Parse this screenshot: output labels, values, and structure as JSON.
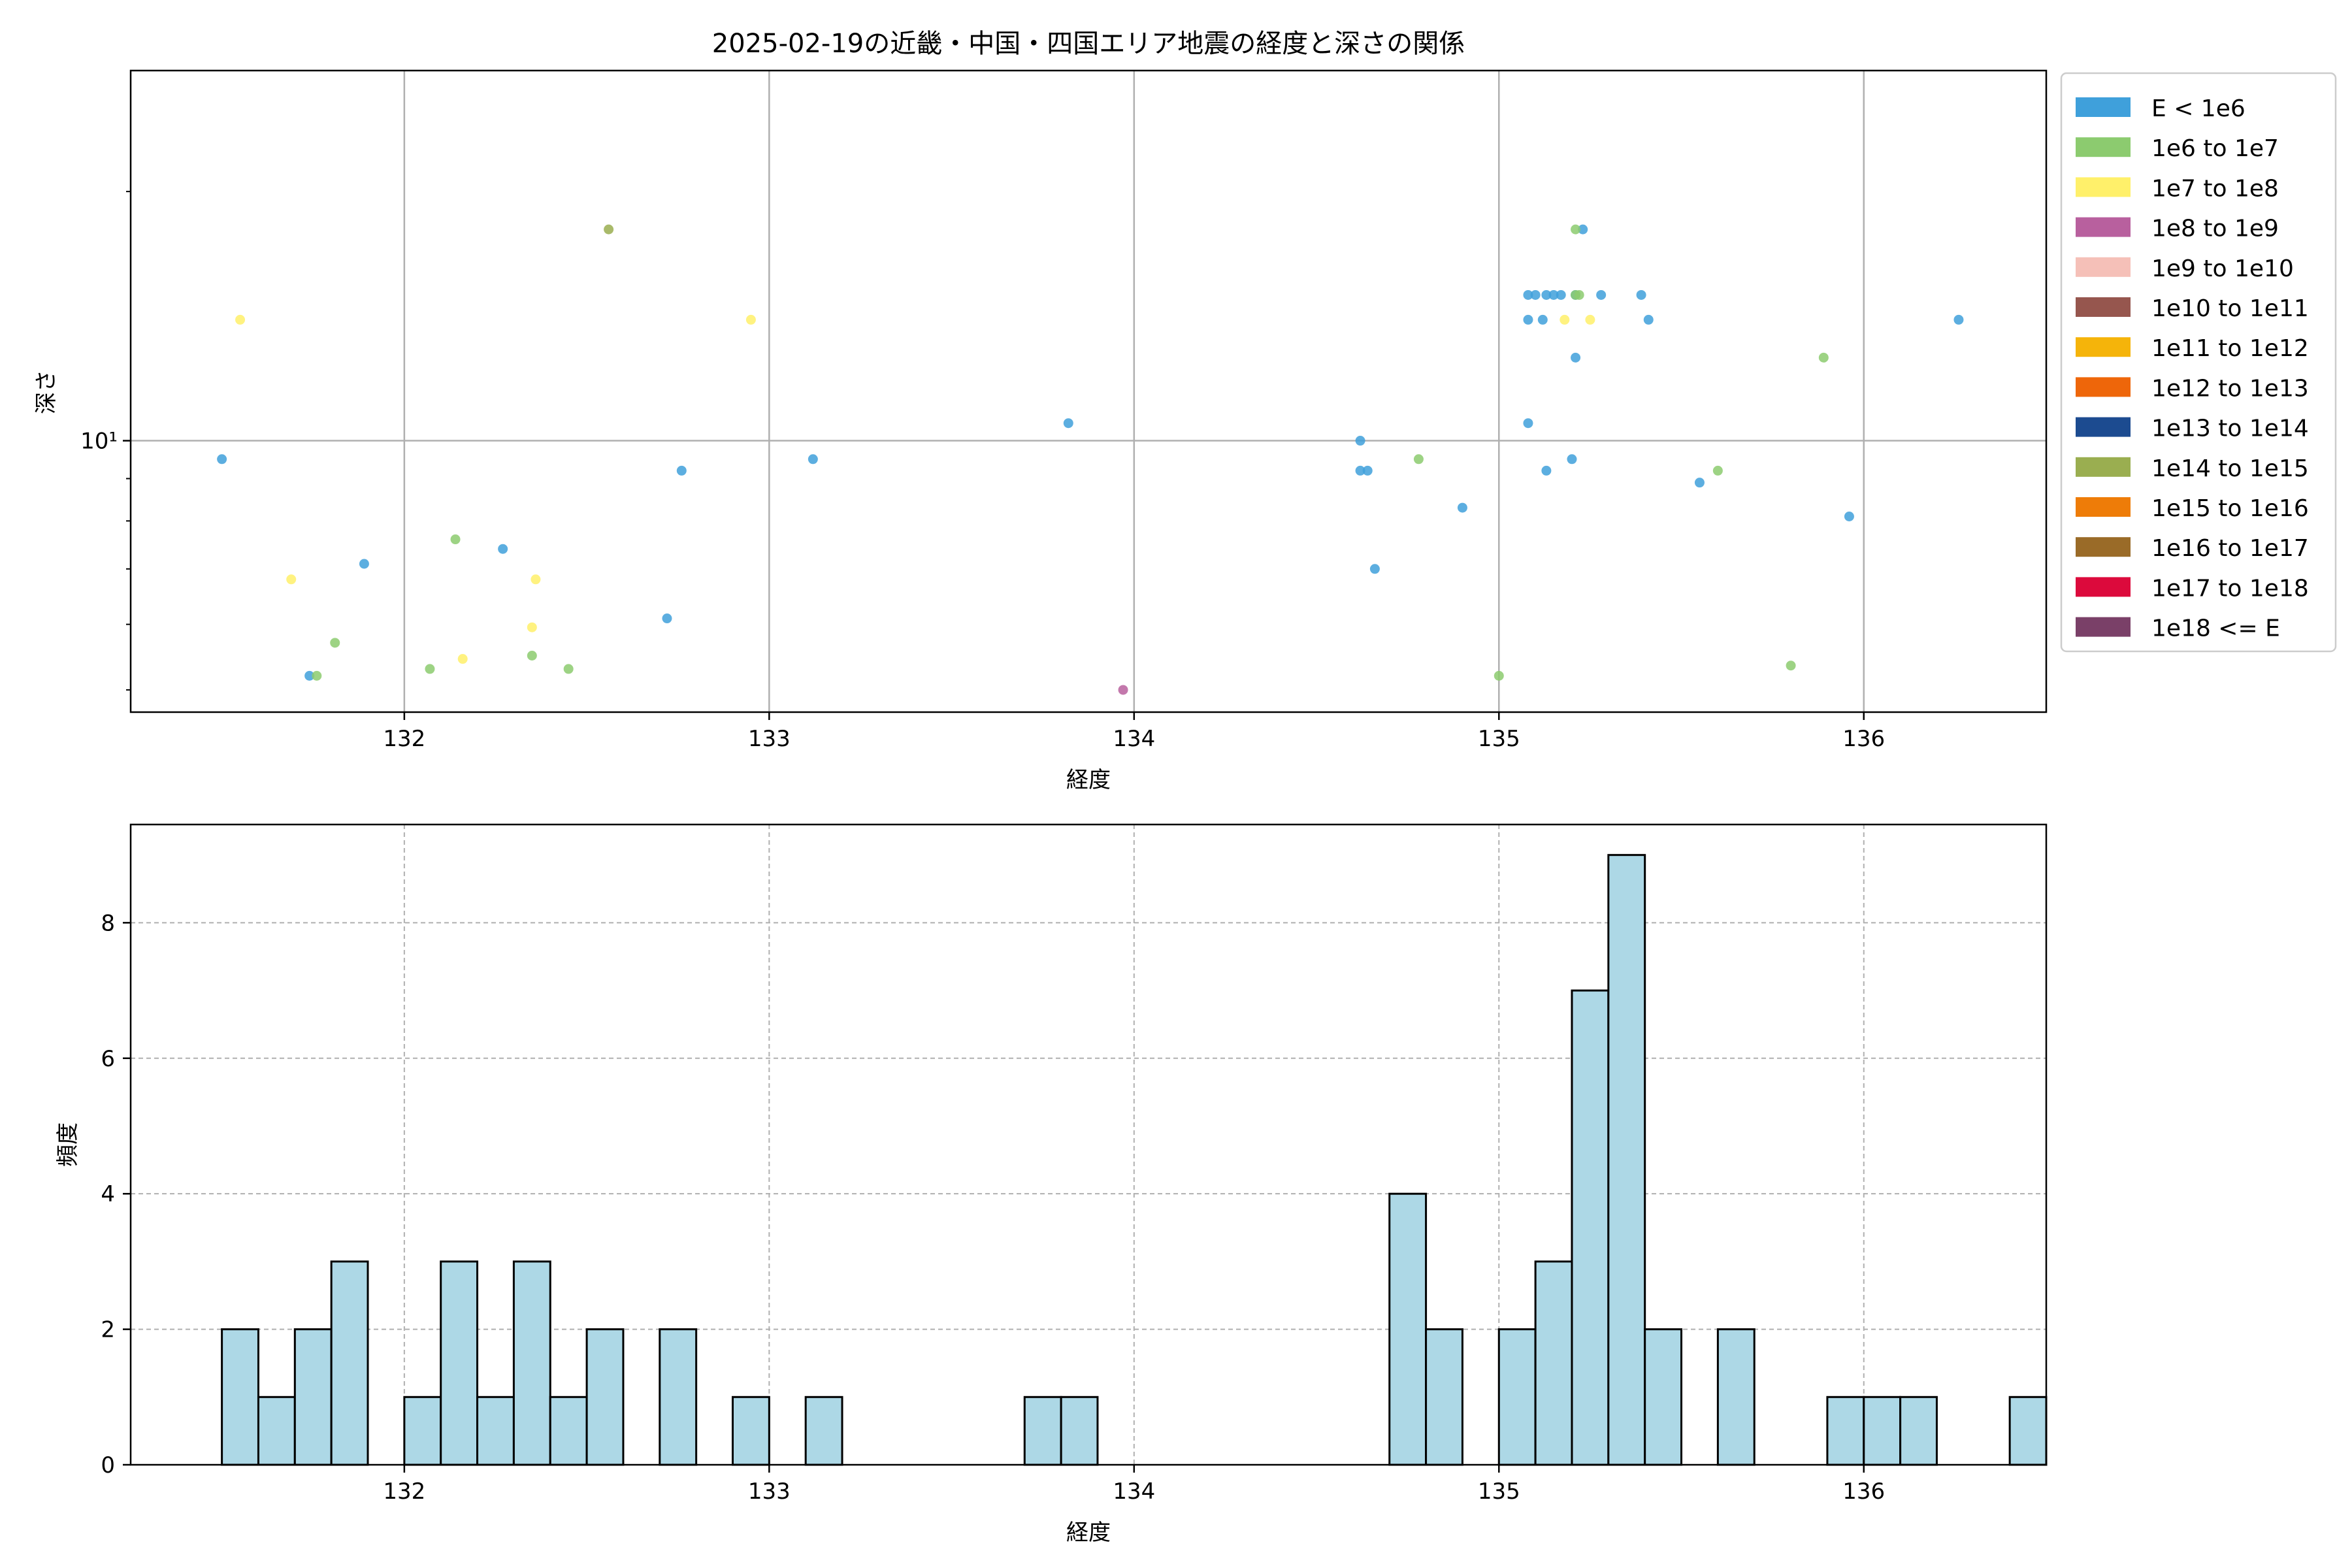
{
  "figure": {
    "background": "#ffffff"
  },
  "chart_data": [
    {
      "type": "scatter",
      "title": "2025-02-19の近畿・中国・四国エリア地震の経度と深さの関係",
      "xlabel": "経度",
      "ylabel": "深さ",
      "xlim": [
        131.25,
        136.5
      ],
      "ylim": [
        4.7,
        28
      ],
      "yscale": "log",
      "xticks": [
        "132",
        "133",
        "134",
        "135",
        "136"
      ],
      "yticks": [
        "10¹"
      ],
      "grid": true,
      "legend_position": "right-outside",
      "legend": [
        {
          "label": "E < 1e6",
          "color": "#3fa0db"
        },
        {
          "label": "1e6 to 1e7",
          "color": "#8ccb6f"
        },
        {
          "label": "1e7 to 1e8",
          "color": "#fff06a"
        },
        {
          "label": "1e8 to 1e9",
          "color": "#b8609e"
        },
        {
          "label": "1e9 to 1e10",
          "color": "#f5c0b8"
        },
        {
          "label": "1e10 to 1e11",
          "color": "#96564e"
        },
        {
          "label": "1e11 to 1e12",
          "color": "#f5b40a"
        },
        {
          "label": "1e12 to 1e13",
          "color": "#ee660a"
        },
        {
          "label": "1e13 to 1e14",
          "color": "#1c4b90"
        },
        {
          "label": "1e14 to 1e15",
          "color": "#9aae50"
        },
        {
          "label": "1e15 to 1e16",
          "color": "#ee7c08"
        },
        {
          "label": "1e16 to 1e17",
          "color": "#9a6b28"
        },
        {
          "label": "1e17 to 1e18",
          "color": "#dc0a3c"
        },
        {
          "label": "1e18 <= E",
          "color": "#7a4068"
        }
      ],
      "series": [
        {
          "legend_index": 0,
          "points": [
            [
              131.5,
              9.5
            ],
            [
              131.74,
              5.2
            ],
            [
              131.89,
              7.1
            ],
            [
              132.27,
              7.4
            ],
            [
              132.72,
              6.1
            ],
            [
              132.76,
              9.2
            ],
            [
              133.12,
              9.5
            ],
            [
              133.82,
              10.5
            ],
            [
              134.62,
              10.0
            ],
            [
              134.62,
              9.2
            ],
            [
              134.64,
              9.2
            ],
            [
              134.66,
              7.0
            ],
            [
              134.9,
              8.3
            ],
            [
              135.08,
              14.0
            ],
            [
              135.08,
              15.0
            ],
            [
              135.1,
              15.0
            ],
            [
              135.12,
              14.0
            ],
            [
              135.13,
              15.0
            ],
            [
              135.15,
              15.0
            ],
            [
              135.17,
              15.0
            ],
            [
              135.21,
              12.6
            ],
            [
              135.21,
              15.0
            ],
            [
              135.23,
              18.0
            ],
            [
              135.08,
              10.5
            ],
            [
              135.13,
              9.2
            ],
            [
              135.2,
              9.5
            ],
            [
              135.28,
              15.0
            ],
            [
              135.39,
              15.0
            ],
            [
              135.41,
              14.0
            ],
            [
              135.55,
              8.9
            ],
            [
              135.96,
              8.1
            ],
            [
              136.26,
              14.0
            ]
          ]
        },
        {
          "legend_index": 1,
          "points": [
            [
              131.76,
              5.2
            ],
            [
              131.81,
              5.7
            ],
            [
              132.07,
              5.3
            ],
            [
              132.14,
              7.6
            ],
            [
              132.35,
              5.5
            ],
            [
              132.45,
              5.3
            ],
            [
              134.78,
              9.5
            ],
            [
              135.0,
              5.2
            ],
            [
              135.21,
              18.0
            ],
            [
              135.21,
              15.0
            ],
            [
              135.22,
              15.0
            ],
            [
              135.6,
              9.2
            ],
            [
              135.8,
              5.35
            ],
            [
              135.89,
              12.6
            ]
          ]
        },
        {
          "legend_index": 2,
          "points": [
            [
              131.55,
              14.0
            ],
            [
              131.69,
              6.8
            ],
            [
              132.16,
              5.45
            ],
            [
              132.35,
              5.95
            ],
            [
              132.36,
              6.8
            ],
            [
              132.95,
              14.0
            ],
            [
              135.18,
              14.0
            ],
            [
              135.25,
              14.0
            ]
          ]
        },
        {
          "legend_index": 3,
          "points": [
            [
              133.97,
              5.0
            ]
          ]
        },
        {
          "legend_index": 9,
          "points": [
            [
              132.56,
              18.0
            ]
          ]
        }
      ]
    },
    {
      "type": "bar",
      "subtype": "histogram",
      "xlabel": "経度",
      "ylabel": "頻度",
      "xlim": [
        131.25,
        136.5
      ],
      "ylim": [
        0,
        9.45
      ],
      "xticks": [
        "132",
        "133",
        "134",
        "135",
        "136"
      ],
      "yticks": [
        "0",
        "2",
        "4",
        "6",
        "8"
      ],
      "grid": true,
      "bar_color": "#add8e6",
      "edge_color": "#000000",
      "bin_start": 131.5,
      "bin_width": 0.1,
      "values": [
        2,
        1,
        2,
        3,
        0,
        1,
        3,
        1,
        3,
        1,
        2,
        0,
        2,
        0,
        1,
        0,
        1,
        0,
        0,
        0,
        0,
        0,
        1,
        1,
        0,
        0,
        0,
        0,
        0,
        0,
        0,
        0,
        4,
        2,
        0,
        2,
        3,
        7,
        9,
        2,
        0,
        2,
        0,
        0,
        1,
        1,
        1,
        0,
        0,
        1
      ]
    }
  ]
}
